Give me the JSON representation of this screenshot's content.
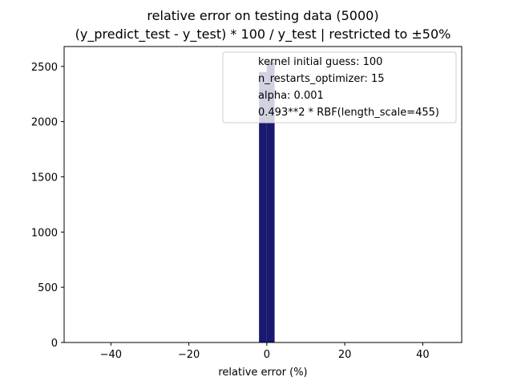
{
  "chart_data": {
    "type": "bar",
    "title": "relative error on testing data (5000)",
    "subtitle": "(y_predict_test - y_test) * 100 / y_test | restricted to ±50%",
    "xlabel": "relative error (%)",
    "ylabel": "",
    "xlim": [
      -52,
      50
    ],
    "ylim": [
      0,
      2680
    ],
    "xticks": [
      -40,
      -20,
      0,
      20,
      40
    ],
    "xtick_labels": [
      "−40",
      "−20",
      "0",
      "20",
      "40"
    ],
    "yticks": [
      0,
      500,
      1000,
      1500,
      2000,
      2500
    ],
    "ytick_labels": [
      "0",
      "500",
      "1000",
      "1500",
      "2000",
      "2500"
    ],
    "grid": false,
    "legend_position": "top-right",
    "bars": [
      {
        "x_start": -2,
        "x_end": 0,
        "value": 2450,
        "color": "#191970"
      },
      {
        "x_start": 0,
        "x_end": 2,
        "value": 2540,
        "color": "#191970"
      }
    ],
    "legend_entries": [
      "kernel initial guess: 100",
      "n_restarts_optimizer: 15",
      "alpha: 0.001",
      "0.493**2 * RBF(length_scale=455)"
    ]
  }
}
